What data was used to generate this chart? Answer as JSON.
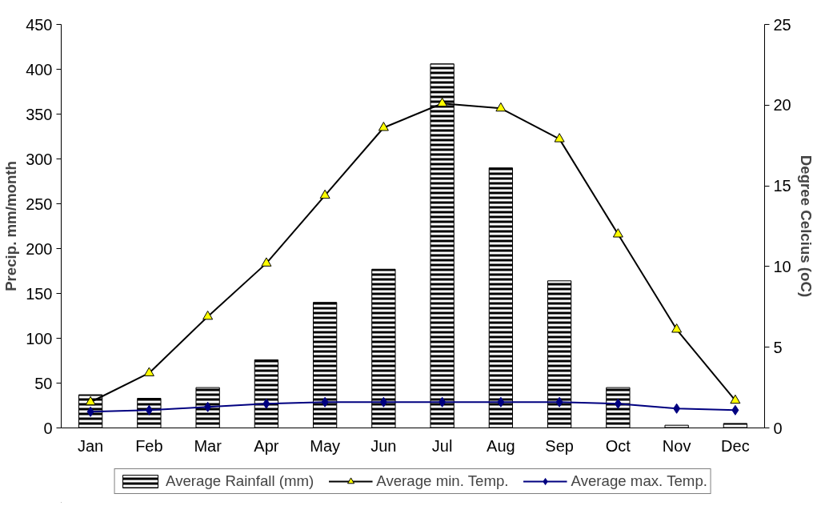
{
  "chart_data": {
    "type": "bar",
    "categories": [
      "Jan",
      "Feb",
      "Mar",
      "Apr",
      "May",
      "Jun",
      "Jul",
      "Aug",
      "Sep",
      "Oct",
      "Nov",
      "Dec"
    ],
    "ylabel": "Precip. mm/month",
    "y2label": "Degree Celcius (oC)",
    "ylim": [
      0,
      450
    ],
    "yticks": [
      0,
      50,
      100,
      150,
      200,
      250,
      300,
      350,
      400,
      450
    ],
    "y2lim": [
      0,
      25
    ],
    "y2ticks": [
      0,
      5,
      10,
      15,
      20,
      25
    ],
    "grid": false,
    "legend": "bottom",
    "series": [
      {
        "name": "Average Rainfall (mm)",
        "color": "#000000",
        "values": [
          37,
          33,
          45,
          76,
          140,
          177,
          406,
          290,
          164,
          45,
          3,
          5
        ]
      },
      {
        "name": "Average min. Temp.",
        "type": "line",
        "axis": "y2",
        "marker": "triangle",
        "color": "#000000",
        "values": [
          1.6,
          3.4,
          6.9,
          10.2,
          14.4,
          18.6,
          20.1,
          19.8,
          17.9,
          12.0,
          6.1,
          1.7
        ]
      },
      {
        "name": "Average max. Temp.",
        "type": "line",
        "axis": "y2",
        "marker": "diamond",
        "color": "#000080",
        "values": [
          1.0,
          1.1,
          1.3,
          1.5,
          1.6,
          1.6,
          1.6,
          1.6,
          1.6,
          1.5,
          1.2,
          1.1
        ]
      }
    ]
  }
}
